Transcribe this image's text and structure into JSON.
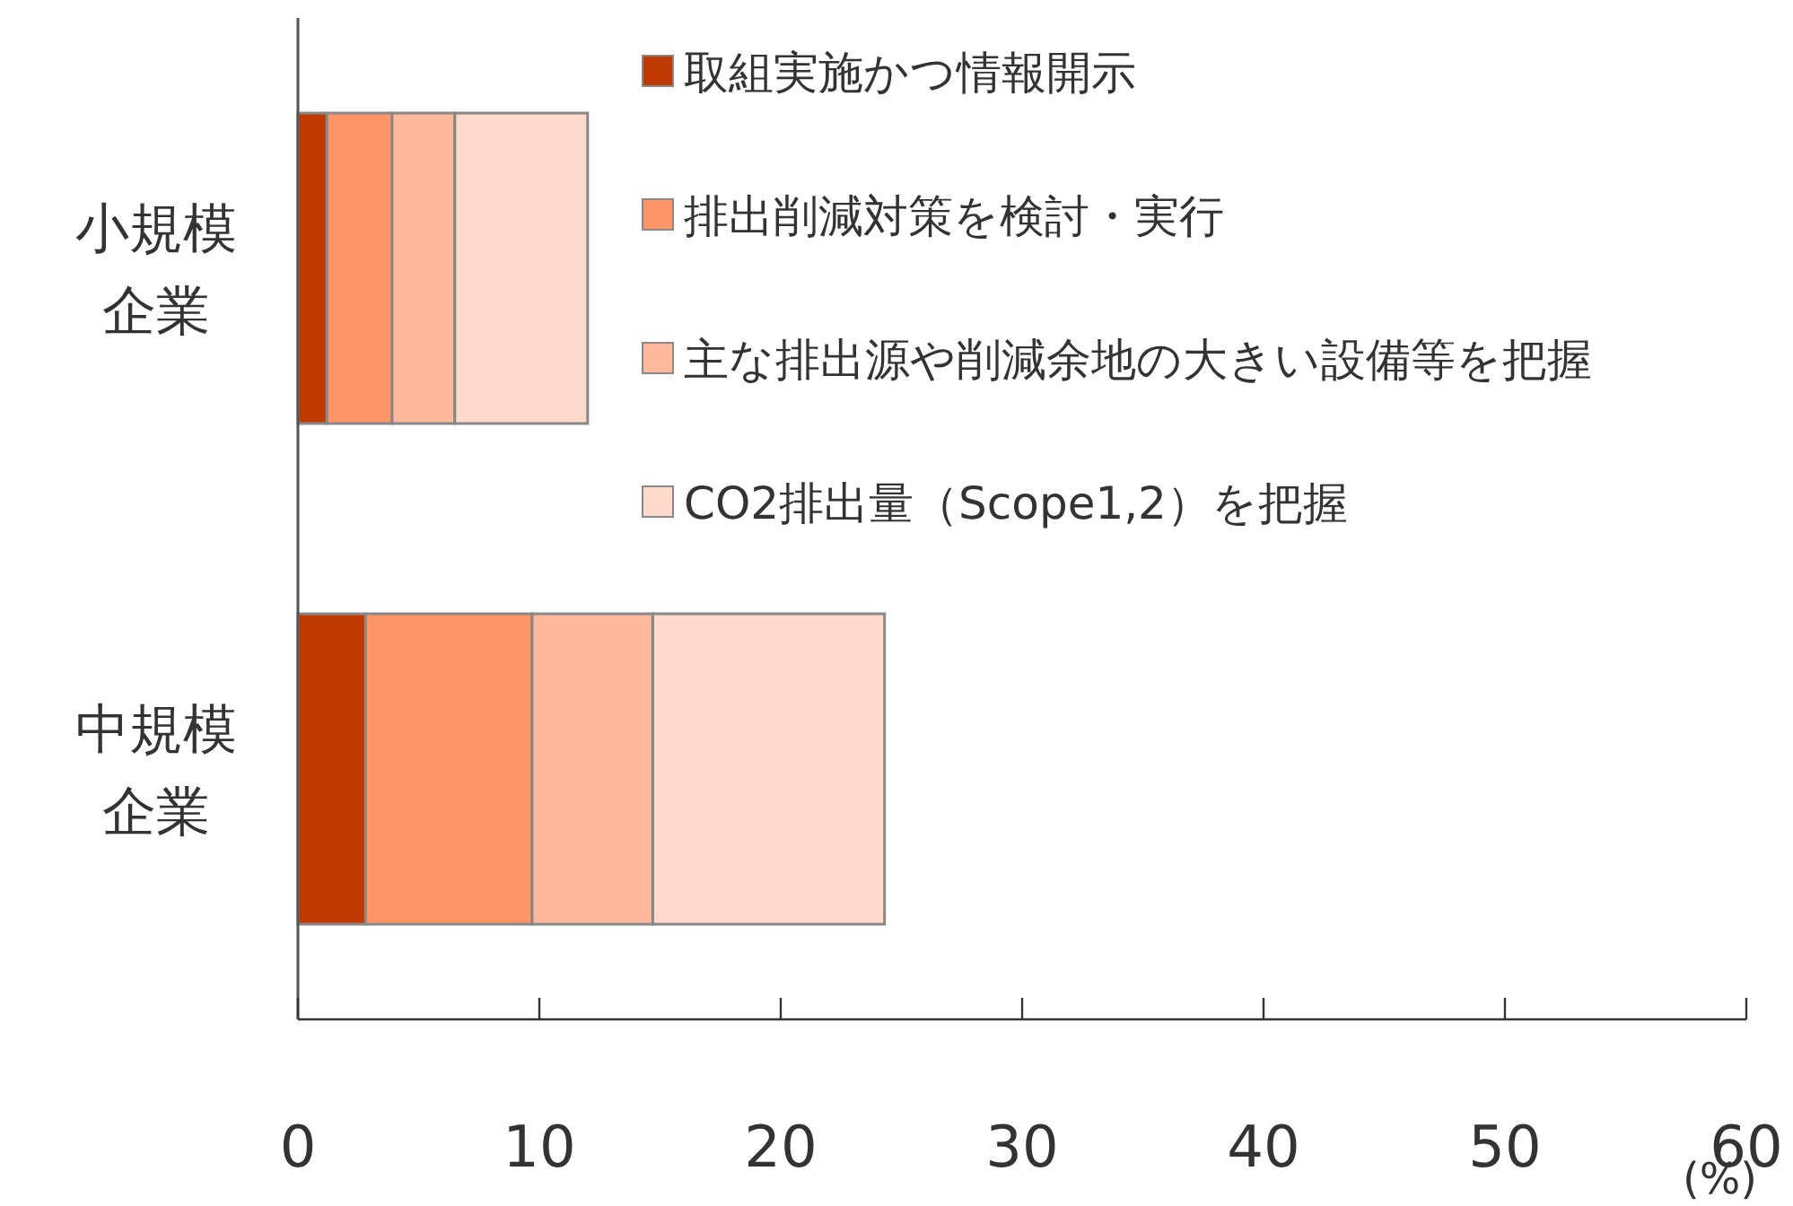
{
  "chart_data": {
    "type": "bar",
    "orientation": "horizontal",
    "stacked": true,
    "categories": [
      "小規模企業",
      "中規模企業"
    ],
    "series": [
      {
        "name": "取組実施かつ情報開示",
        "color": "#c03900",
        "values": [
          1.2,
          2.8
        ]
      },
      {
        "name": "排出削減対策を検討・実行",
        "color": "#ff9566",
        "values": [
          2.7,
          6.9
        ]
      },
      {
        "name": "主な排出源や削減余地の大きい設備等を把握",
        "color": "#ffb899",
        "values": [
          2.6,
          5.0
        ]
      },
      {
        "name": "CO2排出量（Scope1,2）を把握",
        "color": "#ffdacb",
        "values": [
          5.5,
          9.6
        ]
      }
    ],
    "xlim": [
      0,
      60
    ],
    "xticks": [
      0,
      10,
      20,
      30,
      40,
      50,
      60
    ],
    "xlabel": "(%)",
    "legend": "top right"
  }
}
